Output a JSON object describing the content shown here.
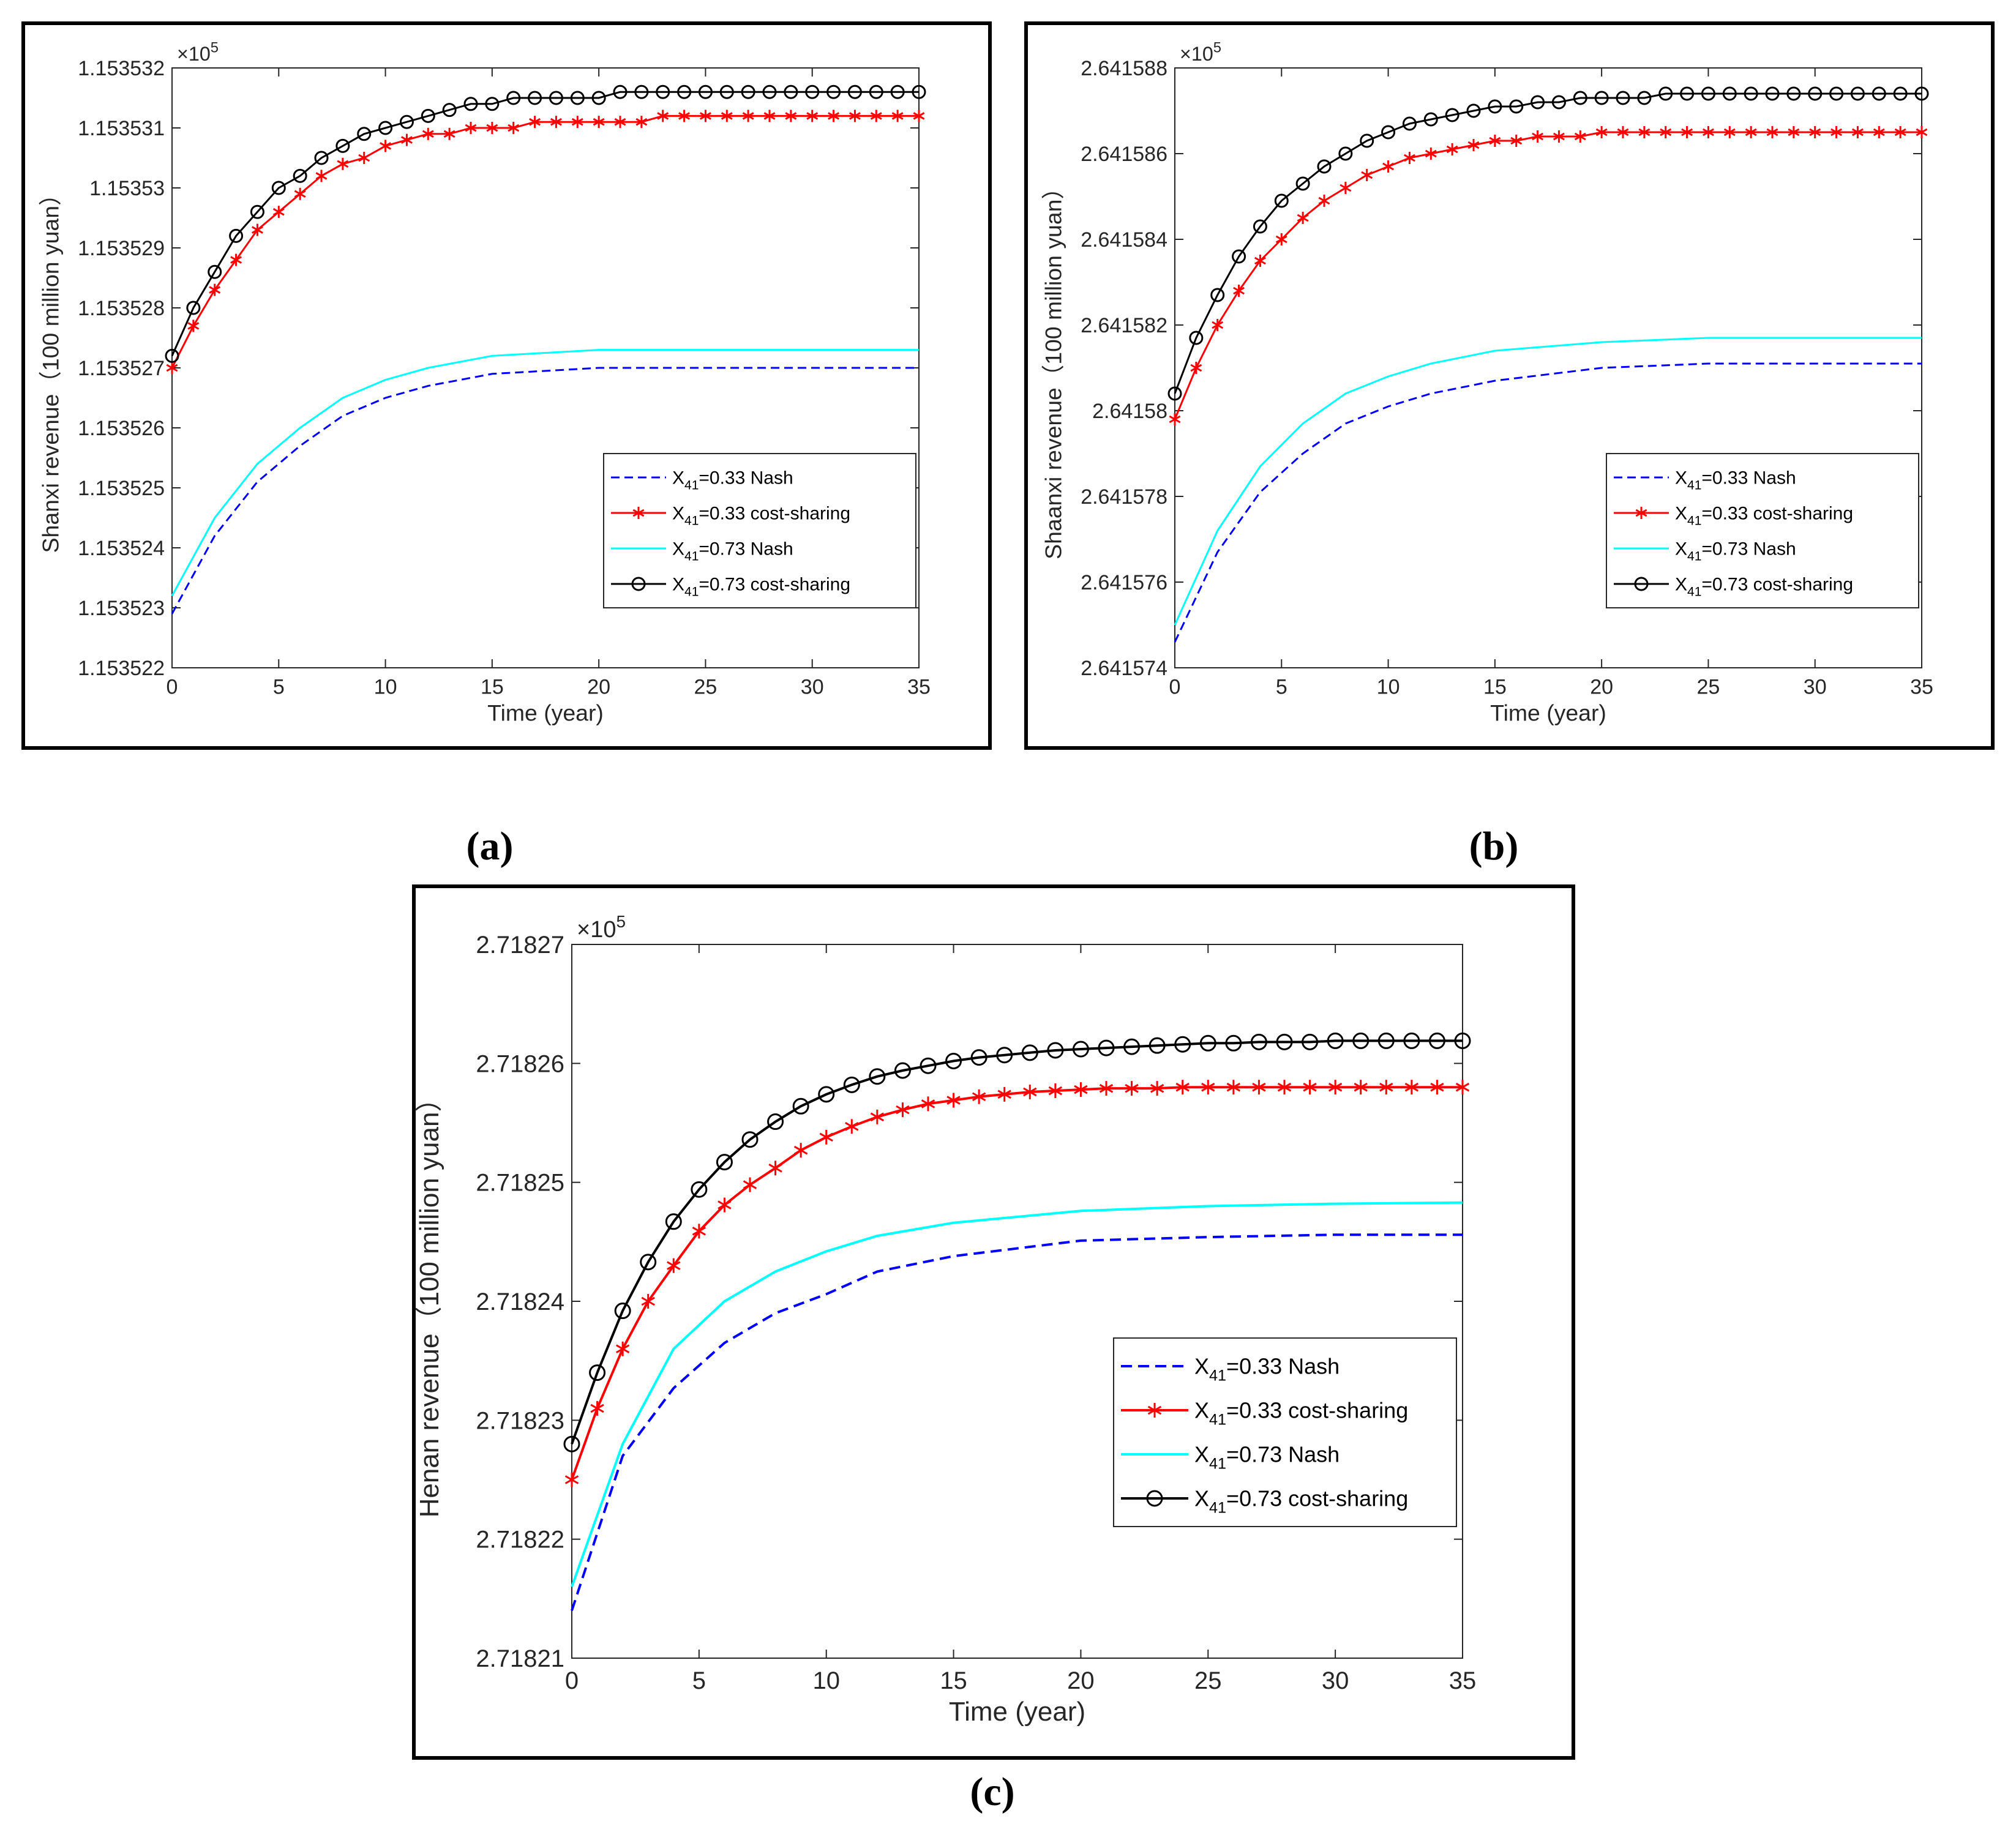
{
  "captions": [
    "(a)",
    "(b)",
    "(c)"
  ],
  "chart_data": [
    {
      "type": "line",
      "panel": "(a)",
      "xlabel": "Time (year)",
      "ylabel": "Shanxi revenue（100 million yuan）",
      "exponent_label": "×10",
      "exponent_power": "5",
      "xlim": [
        0,
        35
      ],
      "ylim": [
        1.153522,
        1.153532
      ],
      "xticks": [
        0,
        5,
        10,
        15,
        20,
        25,
        30,
        35
      ],
      "xtick_labels": [
        "0",
        "5",
        "10",
        "15",
        "20",
        "25",
        "30",
        "35"
      ],
      "yticks": [
        1.153522,
        1.153523,
        1.153524,
        1.153525,
        1.153526,
        1.153527,
        1.153528,
        1.153529,
        1.15353,
        1.153531,
        1.153532
      ],
      "ytick_labels": [
        "1.153522",
        "1.153523",
        "1.153524",
        "1.153525",
        "1.153526",
        "1.153527",
        "1.153528",
        "1.153529",
        "1.15353",
        "1.153531",
        "1.153532"
      ],
      "grid": false,
      "legend_position": "lower-right",
      "series": [
        {
          "name": "X",
          "subscript": "41",
          "suffix": "=0.33 Nash",
          "color": "#0000ff",
          "style": "dashed",
          "marker": "none",
          "x": [
            0,
            2,
            4,
            6,
            8,
            10,
            12,
            15,
            20,
            25,
            30,
            35
          ],
          "y": [
            1.1535229,
            1.1535242,
            1.1535251,
            1.1535257,
            1.1535262,
            1.1535265,
            1.1535267,
            1.1535269,
            1.153527,
            1.153527,
            1.153527,
            1.153527
          ]
        },
        {
          "name": "X",
          "subscript": "41",
          "suffix": "=0.33 cost-sharing",
          "color": "#ff0000",
          "style": "solid",
          "marker": "star",
          "x": [
            0,
            1,
            2,
            3,
            4,
            5,
            6,
            7,
            8,
            9,
            10,
            11,
            12,
            13,
            14,
            15,
            16,
            17,
            18,
            19,
            20,
            21,
            22,
            23,
            24,
            25,
            26,
            27,
            28,
            29,
            30,
            31,
            32,
            33,
            34,
            35
          ],
          "y": [
            1.153527,
            1.1535277,
            1.1535283,
            1.1535288,
            1.1535293,
            1.1535296,
            1.1535299,
            1.1535302,
            1.1535304,
            1.1535305,
            1.1535307,
            1.1535308,
            1.1535309,
            1.1535309,
            1.153531,
            1.153531,
            1.153531,
            1.1535311,
            1.1535311,
            1.1535311,
            1.1535311,
            1.1535311,
            1.1535311,
            1.1535312,
            1.1535312,
            1.1535312,
            1.1535312,
            1.1535312,
            1.1535312,
            1.1535312,
            1.1535312,
            1.1535312,
            1.1535312,
            1.1535312,
            1.1535312,
            1.1535312
          ]
        },
        {
          "name": "X",
          "subscript": "41",
          "suffix": "=0.73 Nash",
          "color": "#00ffff",
          "style": "solid",
          "marker": "none",
          "x": [
            0,
            2,
            4,
            6,
            8,
            10,
            12,
            15,
            20,
            25,
            30,
            35
          ],
          "y": [
            1.1535232,
            1.1535245,
            1.1535254,
            1.153526,
            1.1535265,
            1.1535268,
            1.153527,
            1.1535272,
            1.1535273,
            1.1535273,
            1.1535273,
            1.1535273
          ]
        },
        {
          "name": "X",
          "subscript": "41",
          "suffix": "=0.73 cost-sharing",
          "color": "#000000",
          "style": "solid",
          "marker": "circle",
          "x": [
            0,
            1,
            2,
            3,
            4,
            5,
            6,
            7,
            8,
            9,
            10,
            11,
            12,
            13,
            14,
            15,
            16,
            17,
            18,
            19,
            20,
            21,
            22,
            23,
            24,
            25,
            26,
            27,
            28,
            29,
            30,
            31,
            32,
            33,
            34,
            35
          ],
          "y": [
            1.1535272,
            1.153528,
            1.1535286,
            1.1535292,
            1.1535296,
            1.15353,
            1.1535302,
            1.1535305,
            1.1535307,
            1.1535309,
            1.153531,
            1.1535311,
            1.1535312,
            1.1535313,
            1.1535314,
            1.1535314,
            1.1535315,
            1.1535315,
            1.1535315,
            1.1535315,
            1.1535315,
            1.1535316,
            1.1535316,
            1.1535316,
            1.1535316,
            1.1535316,
            1.1535316,
            1.1535316,
            1.1535316,
            1.1535316,
            1.1535316,
            1.1535316,
            1.1535316,
            1.1535316,
            1.1535316,
            1.1535316
          ]
        }
      ]
    },
    {
      "type": "line",
      "panel": "(b)",
      "xlabel": "Time (year)",
      "ylabel": "Shaanxi revenue（100 million yuan）",
      "exponent_label": "×10",
      "exponent_power": "5",
      "xlim": [
        0,
        35
      ],
      "ylim": [
        2.641574,
        2.641588
      ],
      "xticks": [
        0,
        5,
        10,
        15,
        20,
        25,
        30,
        35
      ],
      "xtick_labels": [
        "0",
        "5",
        "10",
        "15",
        "20",
        "25",
        "30",
        "35"
      ],
      "yticks": [
        2.641574,
        2.641576,
        2.641578,
        2.64158,
        2.641582,
        2.641584,
        2.641586,
        2.641588
      ],
      "ytick_labels": [
        "2.641574",
        "2.641576",
        "2.641578",
        "2.64158",
        "2.641582",
        "2.641584",
        "2.641586",
        "2.641588"
      ],
      "grid": false,
      "legend_position": "right",
      "series": [
        {
          "name": "X",
          "subscript": "41",
          "suffix": "=0.33 Nash",
          "color": "#0000ff",
          "style": "dashed",
          "marker": "none",
          "x": [
            0,
            2,
            4,
            6,
            8,
            10,
            12,
            15,
            20,
            25,
            30,
            35
          ],
          "y": [
            2.6415746,
            2.6415767,
            2.6415781,
            2.641579,
            2.6415797,
            2.6415801,
            2.6415804,
            2.6415807,
            2.641581,
            2.6415811,
            2.6415811,
            2.6415811
          ]
        },
        {
          "name": "X",
          "subscript": "41",
          "suffix": "=0.33 cost-sharing",
          "color": "#ff0000",
          "style": "solid",
          "marker": "star",
          "x": [
            0,
            1,
            2,
            3,
            4,
            5,
            6,
            7,
            8,
            9,
            10,
            11,
            12,
            13,
            14,
            15,
            16,
            17,
            18,
            19,
            20,
            21,
            22,
            23,
            24,
            25,
            26,
            27,
            28,
            29,
            30,
            31,
            32,
            33,
            34,
            35
          ],
          "y": [
            2.6415798,
            2.641581,
            2.641582,
            2.6415828,
            2.6415835,
            2.641584,
            2.6415845,
            2.6415849,
            2.6415852,
            2.6415855,
            2.6415857,
            2.6415859,
            2.641586,
            2.6415861,
            2.6415862,
            2.6415863,
            2.6415863,
            2.6415864,
            2.6415864,
            2.6415864,
            2.6415865,
            2.6415865,
            2.6415865,
            2.6415865,
            2.6415865,
            2.6415865,
            2.6415865,
            2.6415865,
            2.6415865,
            2.6415865,
            2.6415865,
            2.6415865,
            2.6415865,
            2.6415865,
            2.6415865,
            2.6415865
          ]
        },
        {
          "name": "X",
          "subscript": "41",
          "suffix": "=0.73 Nash",
          "color": "#00ffff",
          "style": "solid",
          "marker": "none",
          "x": [
            0,
            2,
            4,
            6,
            8,
            10,
            12,
            15,
            20,
            25,
            30,
            35
          ],
          "y": [
            2.641575,
            2.6415772,
            2.6415787,
            2.6415797,
            2.6415804,
            2.6415808,
            2.6415811,
            2.6415814,
            2.6415816,
            2.6415817,
            2.6415817,
            2.6415817
          ]
        },
        {
          "name": "X",
          "subscript": "41",
          "suffix": "=0.73 cost-sharing",
          "color": "#000000",
          "style": "solid",
          "marker": "circle",
          "x": [
            0,
            1,
            2,
            3,
            4,
            5,
            6,
            7,
            8,
            9,
            10,
            11,
            12,
            13,
            14,
            15,
            16,
            17,
            18,
            19,
            20,
            21,
            22,
            23,
            24,
            25,
            26,
            27,
            28,
            29,
            30,
            31,
            32,
            33,
            34,
            35
          ],
          "y": [
            2.6415804,
            2.6415817,
            2.6415827,
            2.6415836,
            2.6415843,
            2.6415849,
            2.6415853,
            2.6415857,
            2.641586,
            2.6415863,
            2.6415865,
            2.6415867,
            2.6415868,
            2.6415869,
            2.641587,
            2.6415871,
            2.6415871,
            2.6415872,
            2.6415872,
            2.6415873,
            2.6415873,
            2.6415873,
            2.6415873,
            2.6415874,
            2.6415874,
            2.6415874,
            2.6415874,
            2.6415874,
            2.6415874,
            2.6415874,
            2.6415874,
            2.6415874,
            2.6415874,
            2.6415874,
            2.6415874,
            2.6415874
          ]
        }
      ]
    },
    {
      "type": "line",
      "panel": "(c)",
      "xlabel": "Time (year)",
      "ylabel": "Henan revenue（100 million yuan）",
      "exponent_label": "×10",
      "exponent_power": "5",
      "xlim": [
        0,
        35
      ],
      "ylim": [
        2.71821,
        2.71827
      ],
      "xticks": [
        0,
        5,
        10,
        15,
        20,
        25,
        30,
        35
      ],
      "xtick_labels": [
        "0",
        "5",
        "10",
        "15",
        "20",
        "25",
        "30",
        "35"
      ],
      "yticks": [
        2.71821,
        2.71822,
        2.71823,
        2.71824,
        2.71825,
        2.71826,
        2.71827
      ],
      "ytick_labels": [
        "2.71821",
        "2.71822",
        "2.71823",
        "2.71824",
        "2.71825",
        "2.71826",
        "2.71827"
      ],
      "grid": false,
      "legend_position": "lower-right",
      "series": [
        {
          "name": "X",
          "subscript": "41",
          "suffix": "=0.33 Nash",
          "color": "#0000ff",
          "style": "dashed",
          "marker": "none",
          "x": [
            0,
            2,
            4,
            6,
            8,
            10,
            12,
            15,
            20,
            25,
            30,
            35
          ],
          "y": [
            2.718214,
            2.718227,
            2.7182327,
            2.7182365,
            2.718239,
            2.7182406,
            2.7182425,
            2.7182438,
            2.7182451,
            2.7182454,
            2.7182456,
            2.7182456
          ]
        },
        {
          "name": "X",
          "subscript": "41",
          "suffix": "=0.33 cost-sharing",
          "color": "#ff0000",
          "style": "solid",
          "marker": "star",
          "x": [
            0,
            1,
            2,
            3,
            4,
            5,
            6,
            7,
            8,
            9,
            10,
            11,
            12,
            13,
            14,
            15,
            16,
            17,
            18,
            19,
            20,
            21,
            22,
            23,
            24,
            25,
            26,
            27,
            28,
            29,
            30,
            31,
            32,
            33,
            34,
            35
          ],
          "y": [
            2.718225,
            2.718231,
            2.718236,
            2.71824,
            2.718243,
            2.7182459,
            2.7182481,
            2.7182498,
            2.7182512,
            2.7182527,
            2.7182538,
            2.7182547,
            2.7182555,
            2.7182561,
            2.7182566,
            2.7182569,
            2.7182572,
            2.7182574,
            2.7182576,
            2.7182577,
            2.7182578,
            2.7182579,
            2.7182579,
            2.7182579,
            2.718258,
            2.718258,
            2.718258,
            2.718258,
            2.718258,
            2.718258,
            2.718258,
            2.718258,
            2.718258,
            2.718258,
            2.718258,
            2.718258
          ]
        },
        {
          "name": "X",
          "subscript": "41",
          "suffix": "=0.73 Nash",
          "color": "#00ffff",
          "style": "solid",
          "marker": "none",
          "x": [
            0,
            2,
            4,
            6,
            8,
            10,
            12,
            15,
            20,
            25,
            30,
            35
          ],
          "y": [
            2.718216,
            2.718228,
            2.718236,
            2.71824,
            2.7182425,
            2.7182442,
            2.7182455,
            2.7182466,
            2.7182476,
            2.718248,
            2.7182482,
            2.7182483
          ]
        },
        {
          "name": "X",
          "subscript": "41",
          "suffix": "=0.73 cost-sharing",
          "color": "#000000",
          "style": "solid",
          "marker": "circle",
          "x": [
            0,
            1,
            2,
            3,
            4,
            5,
            6,
            7,
            8,
            9,
            10,
            11,
            12,
            13,
            14,
            15,
            16,
            17,
            18,
            19,
            20,
            21,
            22,
            23,
            24,
            25,
            26,
            27,
            28,
            29,
            30,
            31,
            32,
            33,
            34,
            35
          ],
          "y": [
            2.718228,
            2.718234,
            2.7182392,
            2.7182433,
            2.7182467,
            2.7182494,
            2.7182517,
            2.7182536,
            2.7182551,
            2.7182564,
            2.7182574,
            2.7182582,
            2.7182589,
            2.7182594,
            2.7182598,
            2.7182602,
            2.7182605,
            2.7182607,
            2.7182609,
            2.7182611,
            2.7182612,
            2.7182613,
            2.7182614,
            2.7182615,
            2.7182616,
            2.7182617,
            2.7182617,
            2.7182618,
            2.7182618,
            2.7182618,
            2.7182619,
            2.7182619,
            2.7182619,
            2.7182619,
            2.7182619,
            2.7182619
          ]
        }
      ]
    }
  ]
}
